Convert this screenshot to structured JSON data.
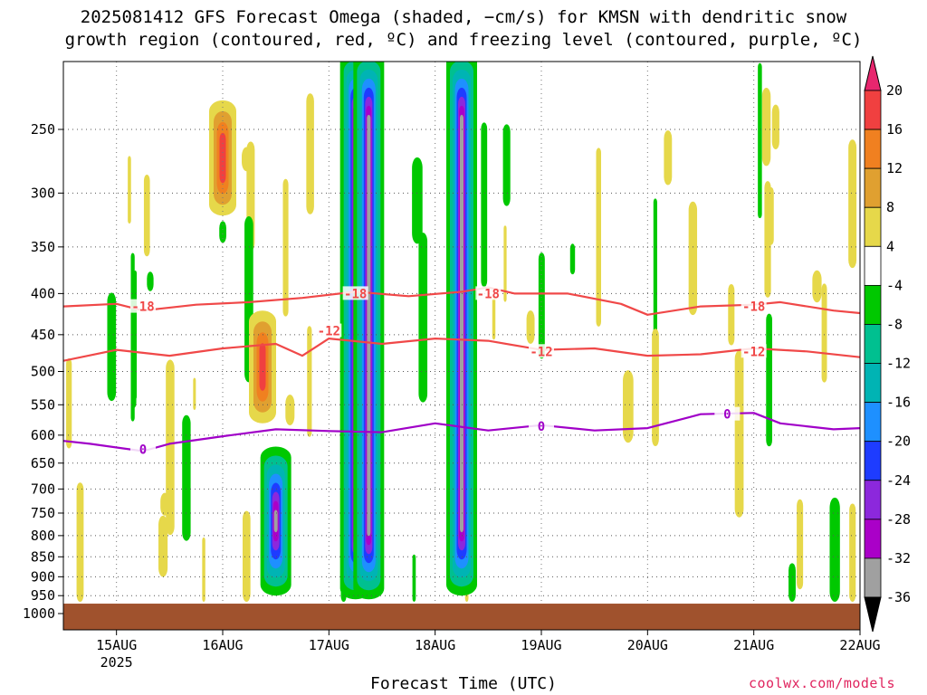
{
  "title": {
    "line1": "2025081412 GFS Forecast Omega (shaded, −cm/s) for KMSN with dendritic snow",
    "line2": "growth region (contoured, red, ºC) and freezing level (contoured, purple, ºC)"
  },
  "xlabel": "Forecast Time (UTC)",
  "credit": "coolwx.com/models",
  "chart_data": {
    "type": "heatmap",
    "title": "2025081412 GFS Forecast Omega (shaded, −cm/s) for KMSN with dendritic snow growth region (contoured, red, ºC) and freezing level (contoured, purple, ºC)",
    "xlabel": "Forecast Time (UTC)",
    "ylabel": "",
    "x_axis": {
      "unit": "forecast time (UTC)",
      "range": [
        "2025-08-14 12Z",
        "2025-08-22 00Z"
      ],
      "ticks": [
        {
          "date": "2025-08-15 00Z",
          "label": "15AUG",
          "sublabel": "2025"
        },
        {
          "date": "2025-08-16 00Z",
          "label": "16AUG"
        },
        {
          "date": "2025-08-17 00Z",
          "label": "17AUG"
        },
        {
          "date": "2025-08-18 00Z",
          "label": "18AUG"
        },
        {
          "date": "2025-08-19 00Z",
          "label": "19AUG"
        },
        {
          "date": "2025-08-20 00Z",
          "label": "20AUG"
        },
        {
          "date": "2025-08-21 00Z",
          "label": "21AUG"
        },
        {
          "date": "2025-08-22 00Z",
          "label": "22AUG"
        }
      ]
    },
    "y_axis": {
      "unit": "pressure (hPa)",
      "scale": "log",
      "inverted": true,
      "range": [
        1000,
        200
      ],
      "ticks": [
        250,
        300,
        350,
        400,
        450,
        500,
        550,
        600,
        650,
        700,
        750,
        800,
        850,
        900,
        950,
        1000
      ]
    },
    "grid": true,
    "colorbar": {
      "unit": "−cm/s",
      "levels": [
        20,
        16,
        12,
        8,
        4,
        -4,
        -8,
        -12,
        -16,
        -20,
        -24,
        -28,
        -32,
        -36
      ],
      "colors": [
        {
          "from": 20,
          "to": 24,
          "color": "#e8266e"
        },
        {
          "from": 16,
          "to": 20,
          "color": "#f04040"
        },
        {
          "from": 12,
          "to": 16,
          "color": "#f08020"
        },
        {
          "from": 8,
          "to": 12,
          "color": "#e0a030"
        },
        {
          "from": 4,
          "to": 8,
          "color": "#e6d84a"
        },
        {
          "from": -4,
          "to": 4,
          "color": "#ffffff"
        },
        {
          "from": -8,
          "to": -4,
          "color": "#00c800"
        },
        {
          "from": -12,
          "to": -8,
          "color": "#00c090"
        },
        {
          "from": -16,
          "to": -12,
          "color": "#00b4b4"
        },
        {
          "from": -20,
          "to": -16,
          "color": "#1e90ff"
        },
        {
          "from": -24,
          "to": -20,
          "color": "#1e3cff"
        },
        {
          "from": -28,
          "to": -24,
          "color": "#8c28dc"
        },
        {
          "from": -32,
          "to": -28,
          "color": "#aa00c8"
        },
        {
          "from": -36,
          "to": -32,
          "color": "#a0a0a0"
        },
        {
          "from": -40,
          "to": -36,
          "color": "#000000"
        }
      ]
    },
    "contour_lines": [
      {
        "label": "-18",
        "color": "#f04848",
        "label_positions": [
          {
            "date": "2025-08-15 06Z",
            "p": 415
          },
          {
            "date": "2025-08-17 06Z",
            "p": 400
          },
          {
            "date": "2025-08-18 12Z",
            "p": 400
          },
          {
            "date": "2025-08-21 00Z",
            "p": 415
          }
        ],
        "points": [
          [
            "2025-08-14 12Z",
            415
          ],
          [
            "2025-08-15 00Z",
            412
          ],
          [
            "2025-08-15 06Z",
            420
          ],
          [
            "2025-08-15 18Z",
            413
          ],
          [
            "2025-08-16 06Z",
            410
          ],
          [
            "2025-08-16 18Z",
            405
          ],
          [
            "2025-08-17 06Z",
            398
          ],
          [
            "2025-08-17 18Z",
            403
          ],
          [
            "2025-08-18 06Z",
            398
          ],
          [
            "2025-08-18 12Z",
            393
          ],
          [
            "2025-08-18 18Z",
            400
          ],
          [
            "2025-08-19 06Z",
            400
          ],
          [
            "2025-08-19 18Z",
            412
          ],
          [
            "2025-08-20 00Z",
            425
          ],
          [
            "2025-08-20 12Z",
            415
          ],
          [
            "2025-08-21 00Z",
            413
          ],
          [
            "2025-08-21 06Z",
            410
          ],
          [
            "2025-08-21 18Z",
            420
          ],
          [
            "2025-08-22 00Z",
            423
          ]
        ]
      },
      {
        "label": "-12",
        "color": "#f04848",
        "label_positions": [
          {
            "date": "2025-08-17 00Z",
            "p": 445
          },
          {
            "date": "2025-08-19 00Z",
            "p": 472
          },
          {
            "date": "2025-08-21 00Z",
            "p": 472
          }
        ],
        "points": [
          [
            "2025-08-14 12Z",
            485
          ],
          [
            "2025-08-15 00Z",
            470
          ],
          [
            "2025-08-15 12Z",
            478
          ],
          [
            "2025-08-16 00Z",
            468
          ],
          [
            "2025-08-16 12Z",
            462
          ],
          [
            "2025-08-16 18Z",
            478
          ],
          [
            "2025-08-17 00Z",
            455
          ],
          [
            "2025-08-17 12Z",
            462
          ],
          [
            "2025-08-18 00Z",
            455
          ],
          [
            "2025-08-18 12Z",
            458
          ],
          [
            "2025-08-19 00Z",
            470
          ],
          [
            "2025-08-19 12Z",
            468
          ],
          [
            "2025-08-20 00Z",
            478
          ],
          [
            "2025-08-20 12Z",
            476
          ],
          [
            "2025-08-21 00Z",
            468
          ],
          [
            "2025-08-21 12Z",
            472
          ],
          [
            "2025-08-22 00Z",
            480
          ]
        ]
      },
      {
        "label": "0",
        "color": "#a000c8",
        "label_positions": [
          {
            "date": "2025-08-15 06Z",
            "p": 625
          },
          {
            "date": "2025-08-19 00Z",
            "p": 585
          },
          {
            "date": "2025-08-20 18Z",
            "p": 565
          }
        ],
        "points": [
          [
            "2025-08-14 12Z",
            610
          ],
          [
            "2025-08-14 18Z",
            615
          ],
          [
            "2025-08-15 06Z",
            628
          ],
          [
            "2025-08-15 12Z",
            615
          ],
          [
            "2025-08-16 00Z",
            602
          ],
          [
            "2025-08-16 12Z",
            590
          ],
          [
            "2025-08-17 00Z",
            593
          ],
          [
            "2025-08-17 12Z",
            595
          ],
          [
            "2025-08-18 00Z",
            580
          ],
          [
            "2025-08-18 12Z",
            592
          ],
          [
            "2025-08-19 00Z",
            583
          ],
          [
            "2025-08-19 12Z",
            592
          ],
          [
            "2025-08-20 00Z",
            588
          ],
          [
            "2025-08-20 12Z",
            565
          ],
          [
            "2025-08-21 00Z",
            563
          ],
          [
            "2025-08-21 06Z",
            580
          ],
          [
            "2025-08-21 18Z",
            590
          ],
          [
            "2025-08-22 00Z",
            588
          ]
        ]
      }
    ],
    "omega_features": [
      {
        "date": "2025-08-16 12Z",
        "p_top": 620,
        "p_bottom": 950,
        "peak": -36
      },
      {
        "date": "2025-08-17 06Z",
        "p_top": 200,
        "p_bottom": 960,
        "peak": -36
      },
      {
        "date": "2025-08-17 09Z",
        "p_top": 200,
        "p_bottom": 960,
        "peak": -36
      },
      {
        "date": "2025-08-18 06Z",
        "p_top": 200,
        "p_bottom": 950,
        "peak": -36
      },
      {
        "date": "2025-08-16 09Z",
        "p_top": 420,
        "p_bottom": 580,
        "peak": 16
      },
      {
        "date": "2025-08-16 00Z",
        "p_top": 230,
        "p_bottom": 320,
        "peak": 16
      }
    ],
    "ground_level_hPa": 972
  }
}
